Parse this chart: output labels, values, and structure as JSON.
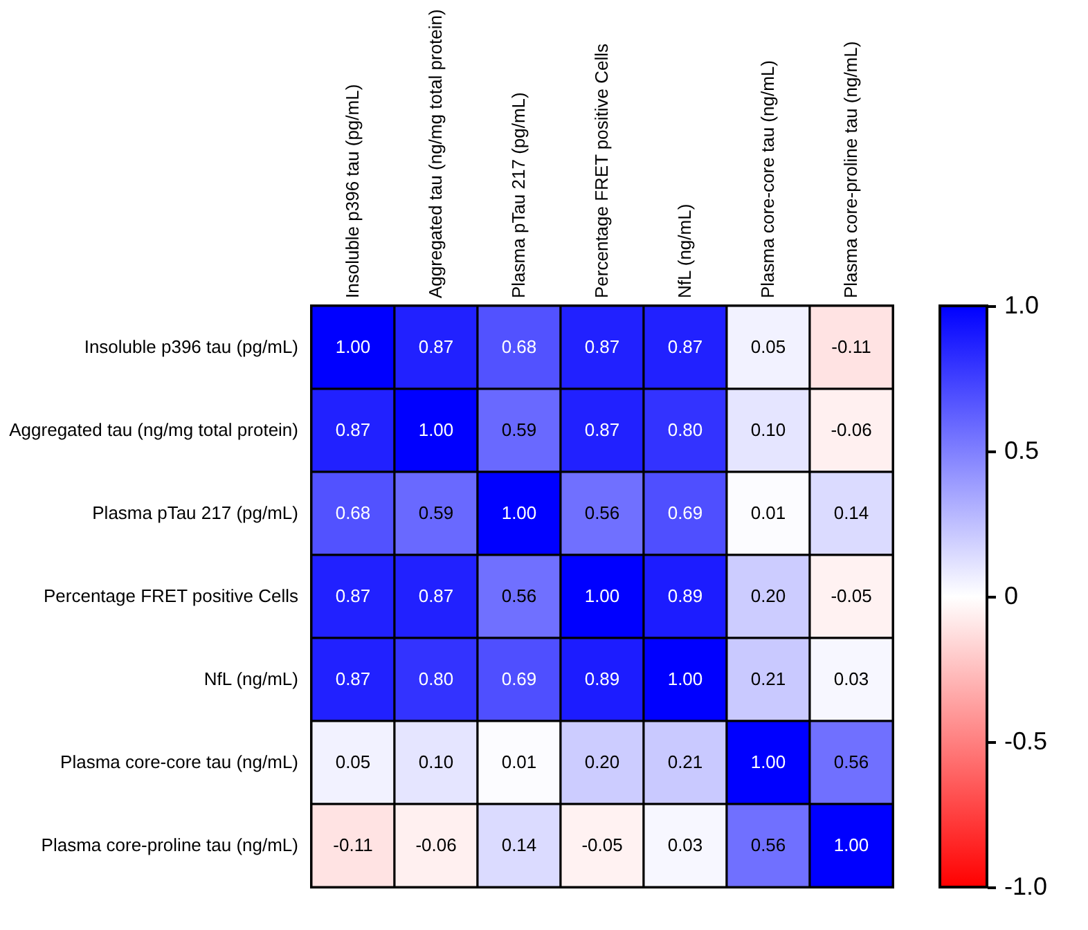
{
  "chart_data": {
    "type": "heatmap",
    "categories": [
      "Insoluble p396  tau (pg/mL)",
      "Aggregated tau (ng/mg total protein)",
      "Plasma pTau 217 (pg/mL)",
      "Percentage FRET positive Cells",
      "NfL (ng/mL)",
      "Plasma core-core tau (ng/mL)",
      "Plasma core-proline tau (ng/mL)"
    ],
    "y_categories": [
      "Insoluble p396  tau (pg/mL)",
      "Aggregated tau (ng/mg total protein)",
      "Plasma pTau 217 (pg/mL)",
      "Percentage FRET positive Cells",
      "NfL (ng/mL)",
      "Plasma core-core tau (ng/mL)",
      "Plasma core-proline tau (ng/mL)"
    ],
    "cells": [
      [
        1,
        0.87,
        0.68,
        0.87,
        0.87,
        0.05,
        -0.11
      ],
      [
        0.87,
        1,
        0.59,
        0.87,
        0.8,
        0.1,
        -0.06
      ],
      [
        0.68,
        0.59,
        1,
        0.56,
        0.69,
        0.01,
        0.14
      ],
      [
        0.87,
        0.87,
        0.56,
        1,
        0.89,
        0.2,
        -0.05
      ],
      [
        0.87,
        0.8,
        0.69,
        0.89,
        1,
        0.21,
        0.03
      ],
      [
        0.05,
        0.1,
        0.01,
        0.2,
        0.21,
        1,
        0.56
      ],
      [
        -0.11,
        -0.06,
        0.14,
        -0.05,
        0.03,
        0.56,
        1
      ]
    ],
    "cell_labels": [
      [
        "1.00",
        "0.87",
        "0.68",
        "0.87",
        "0.87",
        "0.05",
        "-0.11"
      ],
      [
        "0.87",
        "1.00",
        "0.59",
        "0.87",
        "0.80",
        "0.10",
        "-0.06"
      ],
      [
        "0.68",
        "0.59",
        "1.00",
        "0.56",
        "0.69",
        "0.01",
        "0.14"
      ],
      [
        "0.87",
        "0.87",
        "0.56",
        "1.00",
        "0.89",
        "0.20",
        "-0.05"
      ],
      [
        "0.87",
        "0.80",
        "0.69",
        "0.89",
        "1.00",
        "0.21",
        "0.03"
      ],
      [
        "0.05",
        "0.10",
        "0.01",
        "0.20",
        "0.21",
        "1.00",
        "0.56"
      ],
      [
        "-0.11",
        "-0.06",
        "0.14",
        "-0.05",
        "0.03",
        "0.56",
        "1.00"
      ]
    ],
    "clim": [
      -1,
      1
    ],
    "cticks": [
      {
        "value": 1,
        "label": "1.0"
      },
      0.5,
      0,
      -0.5,
      {
        "value": -1,
        "label": "-1.0"
      }
    ],
    "colors": [
      "#ff0000",
      "#ffffff",
      "#0000ff"
    ]
  }
}
